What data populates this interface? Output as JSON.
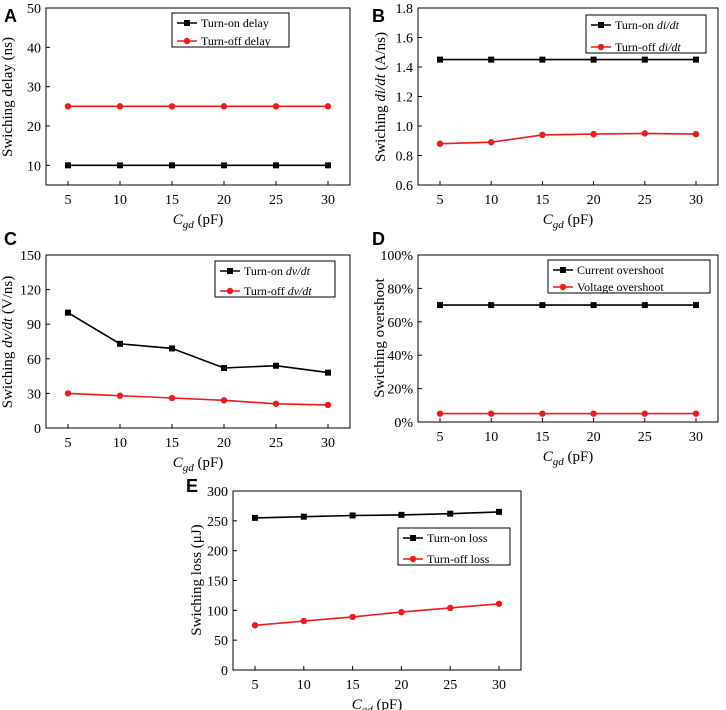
{
  "figure": {
    "style": {
      "series_colors": [
        "#000000",
        "#ee1c1c"
      ]
    }
  },
  "chart_data": [
    {
      "panel": "A",
      "type": "line",
      "title": "",
      "x": [
        5,
        10,
        15,
        20,
        25,
        30
      ],
      "xticks": [
        "5",
        "10",
        "15",
        "20",
        "25",
        "30"
      ],
      "xlabel": {
        "var": "C",
        "sub": "gd",
        "unit": "(pF)"
      },
      "ylabel": "Swiching delay (ns)",
      "ylim": [
        5,
        50
      ],
      "yticks": [
        10,
        20,
        30,
        40,
        50
      ],
      "ytick_labels": [
        "10",
        "20",
        "30",
        "40",
        "50"
      ],
      "legend_position": "top-right",
      "series": [
        {
          "name": "Turn-on delay",
          "marker": "square",
          "values": [
            10,
            10,
            10,
            10,
            10,
            10
          ]
        },
        {
          "name": "Turn-off delay",
          "marker": "circle",
          "values": [
            25,
            25,
            25,
            25,
            25,
            25
          ]
        }
      ]
    },
    {
      "panel": "B",
      "type": "line",
      "title": "",
      "x": [
        5,
        10,
        15,
        20,
        25,
        30
      ],
      "xticks": [
        "5",
        "10",
        "15",
        "20",
        "25",
        "30"
      ],
      "xlabel": {
        "var": "C",
        "sub": "gd",
        "unit": "(pF)"
      },
      "ylabel": "Swiching di/dt (A/ns)",
      "ylim": [
        0.6,
        1.8
      ],
      "yticks": [
        0.6,
        0.8,
        1.0,
        1.2,
        1.4,
        1.6,
        1.8
      ],
      "ytick_labels": [
        "0.6",
        "0.8",
        "1.0",
        "1.2",
        "1.4",
        "1.6",
        "1.8"
      ],
      "legend_position": "top-right",
      "series": [
        {
          "name": "Turn-on di/dt",
          "marker": "square",
          "values": [
            1.45,
            1.45,
            1.45,
            1.45,
            1.45,
            1.45
          ]
        },
        {
          "name": "Turn-off di/dt",
          "marker": "circle",
          "values": [
            0.88,
            0.89,
            0.94,
            0.945,
            0.95,
            0.945
          ]
        }
      ]
    },
    {
      "panel": "C",
      "type": "line",
      "title": "",
      "x": [
        5,
        10,
        15,
        20,
        25,
        30
      ],
      "xticks": [
        "5",
        "10",
        "15",
        "20",
        "25",
        "30"
      ],
      "xlabel": {
        "var": "C",
        "sub": "gd",
        "unit": "(pF)"
      },
      "ylabel": "Swiching dv/dt (V/ns)",
      "ylim": [
        0,
        150
      ],
      "yticks": [
        0,
        30,
        60,
        90,
        120,
        150
      ],
      "ytick_labels": [
        "0",
        "30",
        "60",
        "90",
        "120",
        "150"
      ],
      "legend_position": "top-right",
      "series": [
        {
          "name": "Turn-on dv/dt",
          "marker": "square",
          "values": [
            100,
            73,
            69,
            52,
            54,
            48
          ]
        },
        {
          "name": "Turn-off dv/dt",
          "marker": "circle",
          "values": [
            30,
            28,
            26,
            24,
            21,
            20
          ]
        }
      ]
    },
    {
      "panel": "D",
      "type": "line",
      "title": "",
      "x": [
        5,
        10,
        15,
        20,
        25,
        30
      ],
      "xticks": [
        "5",
        "10",
        "15",
        "20",
        "25",
        "30"
      ],
      "xlabel": {
        "var": "C",
        "sub": "gd",
        "unit": "(pF)"
      },
      "ylabel": "Swiching overshoot",
      "ylim": [
        0,
        100
      ],
      "yticks": [
        0,
        20,
        40,
        60,
        80,
        100
      ],
      "ytick_labels": [
        "0%",
        "20%",
        "40%",
        "60%",
        "80%",
        "100%"
      ],
      "legend_position": "top-right",
      "series": [
        {
          "name": "Current overshoot",
          "marker": "square",
          "values": [
            70,
            70,
            70,
            70,
            70,
            70
          ]
        },
        {
          "name": "Voltage overshoot",
          "marker": "circle",
          "values": [
            5,
            5,
            5,
            5,
            5,
            5
          ]
        }
      ]
    },
    {
      "panel": "E",
      "type": "line",
      "title": "",
      "x": [
        5,
        10,
        15,
        20,
        25,
        30
      ],
      "xticks": [
        "5",
        "10",
        "15",
        "20",
        "25",
        "30"
      ],
      "xlabel": {
        "var": "C",
        "sub": "gd",
        "unit": "(pF)"
      },
      "ylabel": "Swiching loss (μJ)",
      "ylim": [
        0,
        300
      ],
      "yticks": [
        0,
        50,
        100,
        150,
        200,
        250,
        300
      ],
      "ytick_labels": [
        "0",
        "50",
        "100",
        "150",
        "200",
        "250",
        "300"
      ],
      "legend_position": "right",
      "series": [
        {
          "name": "Turn-on loss",
          "marker": "square",
          "values": [
            255,
            257,
            259,
            260,
            262,
            265
          ]
        },
        {
          "name": "Turn-off loss",
          "marker": "circle",
          "values": [
            75,
            82,
            89,
            97,
            104,
            111
          ]
        }
      ]
    }
  ]
}
